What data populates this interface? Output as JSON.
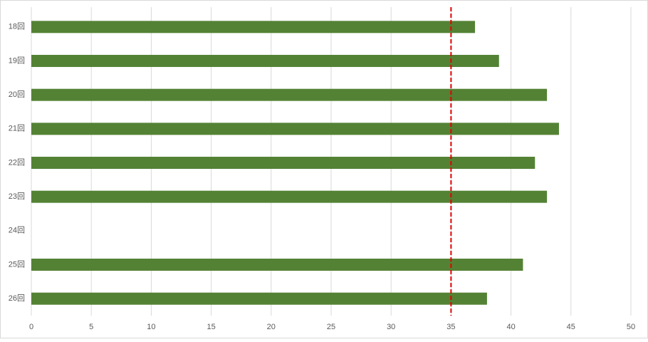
{
  "chart_data": {
    "type": "barh",
    "categories": [
      "18回",
      "19回",
      "20回",
      "21回",
      "22回",
      "23回",
      "24回",
      "25回",
      "26回"
    ],
    "values": [
      37,
      39,
      43,
      44,
      42,
      43,
      null,
      41,
      38
    ],
    "color": "#548235",
    "xlim": [
      0,
      50
    ],
    "xticks": [
      0,
      5,
      10,
      15,
      20,
      25,
      30,
      35,
      40,
      45,
      50
    ],
    "grid": true,
    "reference_line": {
      "value": 35,
      "color": "#e00000"
    }
  }
}
